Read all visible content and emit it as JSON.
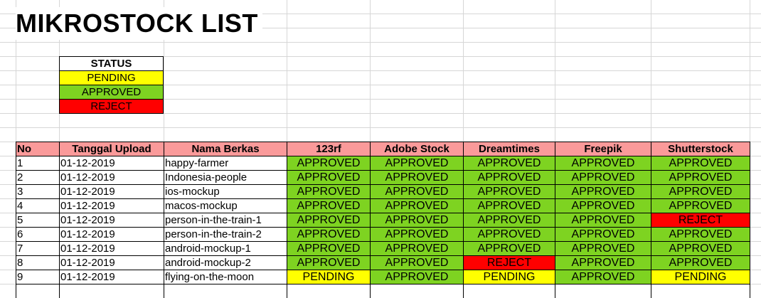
{
  "sheet": {
    "title": "MIKROSTOCK LIST"
  },
  "legend": {
    "header": "STATUS",
    "items": [
      {
        "label": "PENDING",
        "status": "PENDING"
      },
      {
        "label": "APPROVED",
        "status": "APPROVED"
      },
      {
        "label": "REJECT",
        "status": "REJECT"
      }
    ]
  },
  "colors": {
    "header_bg": "#fa9a9a",
    "approved": "#7ed321",
    "pending": "#ffff00",
    "reject": "#ff0000"
  },
  "table": {
    "headers": [
      "No",
      "Tanggal Upload",
      "Nama Berkas",
      "123rf",
      "Adobe Stock",
      "Dreamtimes",
      "Freepik",
      "Shutterstock"
    ],
    "rows": [
      {
        "no": "1",
        "date": "01-12-2019",
        "name": "happy-farmer",
        "statuses": [
          "APPROVED",
          "APPROVED",
          "APPROVED",
          "APPROVED",
          "APPROVED"
        ]
      },
      {
        "no": "2",
        "date": "01-12-2019",
        "name": "Indonesia-people",
        "statuses": [
          "APPROVED",
          "APPROVED",
          "APPROVED",
          "APPROVED",
          "APPROVED"
        ]
      },
      {
        "no": "3",
        "date": "01-12-2019",
        "name": "ios-mockup",
        "statuses": [
          "APPROVED",
          "APPROVED",
          "APPROVED",
          "APPROVED",
          "APPROVED"
        ]
      },
      {
        "no": "4",
        "date": "01-12-2019",
        "name": "macos-mockup",
        "statuses": [
          "APPROVED",
          "APPROVED",
          "APPROVED",
          "APPROVED",
          "APPROVED"
        ]
      },
      {
        "no": "5",
        "date": "01-12-2019",
        "name": "person-in-the-train-1",
        "statuses": [
          "APPROVED",
          "APPROVED",
          "APPROVED",
          "APPROVED",
          "REJECT"
        ]
      },
      {
        "no": "6",
        "date": "01-12-2019",
        "name": "person-in-the-train-2",
        "statuses": [
          "APPROVED",
          "APPROVED",
          "APPROVED",
          "APPROVED",
          "APPROVED"
        ]
      },
      {
        "no": "7",
        "date": "01-12-2019",
        "name": "android-mockup-1",
        "statuses": [
          "APPROVED",
          "APPROVED",
          "APPROVED",
          "APPROVED",
          "APPROVED"
        ]
      },
      {
        "no": "8",
        "date": "01-12-2019",
        "name": "android-mockup-2",
        "statuses": [
          "APPROVED",
          "APPROVED",
          "REJECT",
          "APPROVED",
          "APPROVED"
        ]
      },
      {
        "no": "9",
        "date": "01-12-2019",
        "name": "flying-on-the-moon",
        "statuses": [
          "PENDING",
          "APPROVED",
          "PENDING",
          "APPROVED",
          "PENDING"
        ]
      }
    ]
  }
}
